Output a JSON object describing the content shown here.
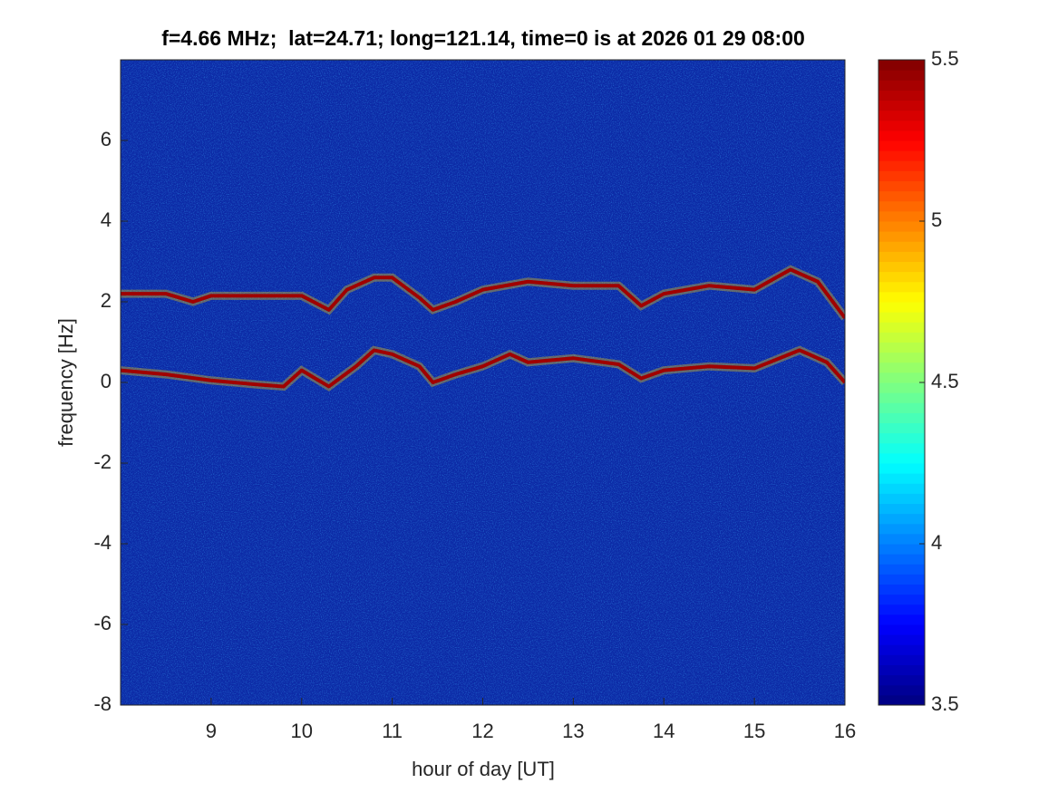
{
  "chart_data": {
    "type": "spectrogram",
    "title": "f=4.66 MHz;  lat=24.71; long=121.14, time=0 is at 2026 01 29 08:00",
    "xlabel": "hour of day [UT]",
    "ylabel": "frequency [Hz]",
    "xlim": [
      8,
      16
    ],
    "xticks": [
      9,
      10,
      11,
      12,
      13,
      14,
      15,
      16
    ],
    "ylim": [
      -8,
      8
    ],
    "yticks": [
      -8,
      -6,
      -4,
      -2,
      0,
      2,
      4,
      6
    ],
    "background_color": "#0c2aa6",
    "series": [
      {
        "color": "#a00000",
        "x": [
          8.0,
          8.5,
          8.8,
          9.0,
          9.5,
          10.0,
          10.3,
          10.5,
          10.8,
          11.0,
          11.3,
          11.45,
          11.7,
          12.0,
          12.5,
          13.0,
          13.5,
          13.75,
          14.0,
          14.5,
          15.0,
          15.4,
          15.7,
          16.0
        ],
        "values": [
          2.2,
          2.2,
          2.0,
          2.15,
          2.15,
          2.15,
          1.8,
          2.3,
          2.6,
          2.6,
          2.1,
          1.8,
          2.0,
          2.3,
          2.5,
          2.4,
          2.4,
          1.9,
          2.2,
          2.4,
          2.3,
          2.8,
          2.5,
          1.6
        ]
      },
      {
        "color": "#a00000",
        "x": [
          8.0,
          8.5,
          9.0,
          9.5,
          9.8,
          10.0,
          10.3,
          10.6,
          10.8,
          11.0,
          11.3,
          11.45,
          11.7,
          12.0,
          12.3,
          12.5,
          13.0,
          13.5,
          13.75,
          14.0,
          14.5,
          15.0,
          15.5,
          15.8,
          16.0
        ],
        "values": [
          0.3,
          0.2,
          0.05,
          -0.05,
          -0.1,
          0.3,
          -0.1,
          0.4,
          0.8,
          0.7,
          0.4,
          0.0,
          0.2,
          0.4,
          0.7,
          0.5,
          0.6,
          0.45,
          0.1,
          0.3,
          0.4,
          0.35,
          0.8,
          0.5,
          0.0
        ]
      }
    ],
    "colorbar": {
      "colormap": "jet",
      "clim": [
        3.5,
        5.5
      ],
      "ticks": [
        3.5,
        4,
        4.5,
        5,
        5.5
      ]
    }
  }
}
